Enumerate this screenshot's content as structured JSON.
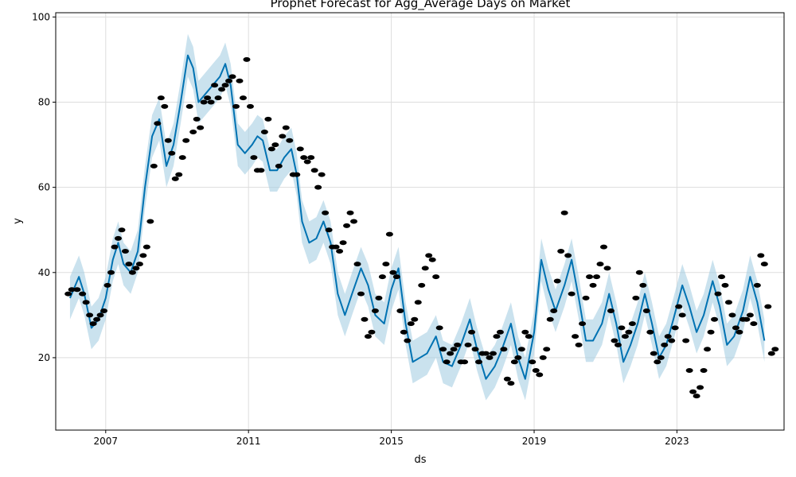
{
  "chart_data": {
    "type": "line",
    "title": "Prophet Forecast for Agg_Average Days on Market",
    "xlabel": "ds",
    "ylabel": "y",
    "xlim": [
      2005.6,
      2026.0
    ],
    "ylim": [
      3,
      101
    ],
    "x_ticks": [
      2007,
      2011,
      2015,
      2019,
      2023
    ],
    "y_ticks": [
      20,
      40,
      60,
      80,
      100
    ],
    "grid": true,
    "colors": {
      "forecast_line": "#0072B2",
      "uncertainty_band": "#a6cee3",
      "observed_points": "#000000",
      "grid": "#dddddd"
    },
    "series": [
      {
        "name": "yhat",
        "points": [
          [
            2006.0,
            34
          ],
          [
            2006.1,
            36
          ],
          [
            2006.25,
            39
          ],
          [
            2006.4,
            35
          ],
          [
            2006.6,
            27
          ],
          [
            2006.8,
            29
          ],
          [
            2007.0,
            34
          ],
          [
            2007.2,
            43
          ],
          [
            2007.35,
            47
          ],
          [
            2007.5,
            42
          ],
          [
            2007.7,
            40
          ],
          [
            2007.9,
            45
          ],
          [
            2008.1,
            60
          ],
          [
            2008.3,
            72
          ],
          [
            2008.5,
            76
          ],
          [
            2008.7,
            65
          ],
          [
            2008.9,
            70
          ],
          [
            2009.1,
            80
          ],
          [
            2009.3,
            91
          ],
          [
            2009.45,
            88
          ],
          [
            2009.6,
            80
          ],
          [
            2009.8,
            82
          ],
          [
            2010.0,
            84
          ],
          [
            2010.2,
            86
          ],
          [
            2010.35,
            89
          ],
          [
            2010.5,
            84
          ],
          [
            2010.7,
            70
          ],
          [
            2010.9,
            68
          ],
          [
            2011.1,
            70
          ],
          [
            2011.25,
            72
          ],
          [
            2011.4,
            71
          ],
          [
            2011.6,
            64
          ],
          [
            2011.8,
            64
          ],
          [
            2012.0,
            67
          ],
          [
            2012.2,
            69
          ],
          [
            2012.35,
            63
          ],
          [
            2012.5,
            52
          ],
          [
            2012.7,
            47
          ],
          [
            2012.9,
            48
          ],
          [
            2013.1,
            52
          ],
          [
            2013.3,
            47
          ],
          [
            2013.5,
            35
          ],
          [
            2013.7,
            30
          ],
          [
            2013.9,
            35
          ],
          [
            2014.15,
            41
          ],
          [
            2014.35,
            37
          ],
          [
            2014.55,
            30
          ],
          [
            2014.8,
            28
          ],
          [
            2015.0,
            36
          ],
          [
            2015.2,
            41
          ],
          [
            2015.4,
            28
          ],
          [
            2015.6,
            19
          ],
          [
            2015.8,
            20
          ],
          [
            2016.0,
            21
          ],
          [
            2016.25,
            25
          ],
          [
            2016.45,
            19
          ],
          [
            2016.7,
            18
          ],
          [
            2016.95,
            23
          ],
          [
            2017.2,
            29
          ],
          [
            2017.4,
            22
          ],
          [
            2017.65,
            15
          ],
          [
            2017.9,
            18
          ],
          [
            2018.1,
            22
          ],
          [
            2018.35,
            28
          ],
          [
            2018.55,
            20
          ],
          [
            2018.75,
            15
          ],
          [
            2019.0,
            26
          ],
          [
            2019.2,
            43
          ],
          [
            2019.4,
            36
          ],
          [
            2019.6,
            31
          ],
          [
            2019.85,
            37
          ],
          [
            2020.05,
            43
          ],
          [
            2020.25,
            34
          ],
          [
            2020.45,
            24
          ],
          [
            2020.65,
            24
          ],
          [
            2020.9,
            28
          ],
          [
            2021.1,
            35
          ],
          [
            2021.3,
            28
          ],
          [
            2021.5,
            19
          ],
          [
            2021.7,
            23
          ],
          [
            2021.9,
            28
          ],
          [
            2022.1,
            35
          ],
          [
            2022.3,
            28
          ],
          [
            2022.5,
            20
          ],
          [
            2022.7,
            23
          ],
          [
            2022.9,
            29
          ],
          [
            2023.15,
            37
          ],
          [
            2023.35,
            32
          ],
          [
            2023.55,
            26
          ],
          [
            2023.75,
            30
          ],
          [
            2024.0,
            38
          ],
          [
            2024.2,
            32
          ],
          [
            2024.4,
            23
          ],
          [
            2024.6,
            25
          ],
          [
            2024.85,
            31
          ],
          [
            2025.05,
            39
          ],
          [
            2025.25,
            33
          ],
          [
            2025.45,
            24
          ]
        ]
      },
      {
        "name": "yhat_band_halfwidth",
        "values": 5
      },
      {
        "name": "y",
        "points": [
          [
            2005.95,
            35
          ],
          [
            2006.05,
            36
          ],
          [
            2006.2,
            36
          ],
          [
            2006.35,
            35
          ],
          [
            2006.45,
            33
          ],
          [
            2006.55,
            30
          ],
          [
            2006.65,
            28
          ],
          [
            2006.75,
            29
          ],
          [
            2006.85,
            30
          ],
          [
            2006.95,
            31
          ],
          [
            2007.05,
            37
          ],
          [
            2007.15,
            40
          ],
          [
            2007.25,
            46
          ],
          [
            2007.35,
            48
          ],
          [
            2007.45,
            50
          ],
          [
            2007.55,
            45
          ],
          [
            2007.65,
            42
          ],
          [
            2007.75,
            40
          ],
          [
            2007.85,
            41
          ],
          [
            2007.95,
            42
          ],
          [
            2008.05,
            44
          ],
          [
            2008.15,
            46
          ],
          [
            2008.25,
            52
          ],
          [
            2008.35,
            65
          ],
          [
            2008.45,
            75
          ],
          [
            2008.55,
            81
          ],
          [
            2008.65,
            79
          ],
          [
            2008.75,
            71
          ],
          [
            2008.85,
            68
          ],
          [
            2008.95,
            62
          ],
          [
            2009.05,
            63
          ],
          [
            2009.15,
            67
          ],
          [
            2009.25,
            71
          ],
          [
            2009.35,
            79
          ],
          [
            2009.45,
            73
          ],
          [
            2009.55,
            76
          ],
          [
            2009.65,
            74
          ],
          [
            2009.75,
            80
          ],
          [
            2009.85,
            81
          ],
          [
            2009.95,
            80
          ],
          [
            2010.05,
            84
          ],
          [
            2010.15,
            81
          ],
          [
            2010.25,
            83
          ],
          [
            2010.35,
            84
          ],
          [
            2010.45,
            85
          ],
          [
            2010.55,
            86
          ],
          [
            2010.65,
            79
          ],
          [
            2010.75,
            85
          ],
          [
            2010.85,
            81
          ],
          [
            2010.95,
            90
          ],
          [
            2011.05,
            79
          ],
          [
            2011.15,
            67
          ],
          [
            2011.25,
            64
          ],
          [
            2011.35,
            64
          ],
          [
            2011.45,
            73
          ],
          [
            2011.55,
            76
          ],
          [
            2011.65,
            69
          ],
          [
            2011.75,
            70
          ],
          [
            2011.85,
            65
          ],
          [
            2011.95,
            72
          ],
          [
            2012.05,
            74
          ],
          [
            2012.15,
            71
          ],
          [
            2012.25,
            63
          ],
          [
            2012.35,
            63
          ],
          [
            2012.45,
            69
          ],
          [
            2012.55,
            67
          ],
          [
            2012.65,
            66
          ],
          [
            2012.75,
            67
          ],
          [
            2012.85,
            64
          ],
          [
            2012.95,
            60
          ],
          [
            2013.05,
            63
          ],
          [
            2013.15,
            54
          ],
          [
            2013.25,
            50
          ],
          [
            2013.35,
            46
          ],
          [
            2013.45,
            46
          ],
          [
            2013.55,
            45
          ],
          [
            2013.65,
            47
          ],
          [
            2013.75,
            51
          ],
          [
            2013.85,
            54
          ],
          [
            2013.95,
            52
          ],
          [
            2014.05,
            42
          ],
          [
            2014.15,
            35
          ],
          [
            2014.25,
            29
          ],
          [
            2014.35,
            25
          ],
          [
            2014.45,
            26
          ],
          [
            2014.55,
            31
          ],
          [
            2014.65,
            34
          ],
          [
            2014.75,
            39
          ],
          [
            2014.85,
            42
          ],
          [
            2014.95,
            49
          ],
          [
            2015.05,
            40
          ],
          [
            2015.15,
            39
          ],
          [
            2015.25,
            31
          ],
          [
            2015.35,
            26
          ],
          [
            2015.45,
            24
          ],
          [
            2015.55,
            28
          ],
          [
            2015.65,
            29
          ],
          [
            2015.75,
            33
          ],
          [
            2015.85,
            37
          ],
          [
            2015.95,
            41
          ],
          [
            2016.05,
            44
          ],
          [
            2016.15,
            43
          ],
          [
            2016.25,
            39
          ],
          [
            2016.35,
            27
          ],
          [
            2016.45,
            22
          ],
          [
            2016.55,
            19
          ],
          [
            2016.65,
            21
          ],
          [
            2016.75,
            22
          ],
          [
            2016.85,
            23
          ],
          [
            2016.95,
            19
          ],
          [
            2017.05,
            19
          ],
          [
            2017.15,
            23
          ],
          [
            2017.25,
            26
          ],
          [
            2017.35,
            22
          ],
          [
            2017.45,
            19
          ],
          [
            2017.55,
            21
          ],
          [
            2017.65,
            21
          ],
          [
            2017.75,
            20
          ],
          [
            2017.85,
            21
          ],
          [
            2017.95,
            25
          ],
          [
            2018.05,
            26
          ],
          [
            2018.15,
            22
          ],
          [
            2018.25,
            15
          ],
          [
            2018.35,
            14
          ],
          [
            2018.45,
            19
          ],
          [
            2018.55,
            20
          ],
          [
            2018.65,
            22
          ],
          [
            2018.75,
            26
          ],
          [
            2018.85,
            25
          ],
          [
            2018.95,
            19
          ],
          [
            2019.05,
            17
          ],
          [
            2019.15,
            16
          ],
          [
            2019.25,
            20
          ],
          [
            2019.35,
            22
          ],
          [
            2019.45,
            29
          ],
          [
            2019.55,
            31
          ],
          [
            2019.65,
            38
          ],
          [
            2019.75,
            45
          ],
          [
            2019.85,
            54
          ],
          [
            2019.95,
            44
          ],
          [
            2020.05,
            35
          ],
          [
            2020.15,
            25
          ],
          [
            2020.25,
            23
          ],
          [
            2020.35,
            28
          ],
          [
            2020.45,
            34
          ],
          [
            2020.55,
            39
          ],
          [
            2020.65,
            37
          ],
          [
            2020.75,
            39
          ],
          [
            2020.85,
            42
          ],
          [
            2020.95,
            46
          ],
          [
            2021.05,
            41
          ],
          [
            2021.15,
            31
          ],
          [
            2021.25,
            24
          ],
          [
            2021.35,
            23
          ],
          [
            2021.45,
            27
          ],
          [
            2021.55,
            25
          ],
          [
            2021.65,
            26
          ],
          [
            2021.75,
            28
          ],
          [
            2021.85,
            34
          ],
          [
            2021.95,
            40
          ],
          [
            2022.05,
            37
          ],
          [
            2022.15,
            31
          ],
          [
            2022.25,
            26
          ],
          [
            2022.35,
            21
          ],
          [
            2022.45,
            19
          ],
          [
            2022.55,
            20
          ],
          [
            2022.65,
            23
          ],
          [
            2022.75,
            25
          ],
          [
            2022.85,
            24
          ],
          [
            2022.95,
            27
          ],
          [
            2023.05,
            32
          ],
          [
            2023.15,
            30
          ],
          [
            2023.25,
            24
          ],
          [
            2023.35,
            17
          ],
          [
            2023.45,
            12
          ],
          [
            2023.55,
            11
          ],
          [
            2023.65,
            13
          ],
          [
            2023.75,
            17
          ],
          [
            2023.85,
            22
          ],
          [
            2023.95,
            26
          ],
          [
            2024.05,
            29
          ],
          [
            2024.15,
            35
          ],
          [
            2024.25,
            39
          ],
          [
            2024.35,
            37
          ],
          [
            2024.45,
            33
          ],
          [
            2024.55,
            30
          ],
          [
            2024.65,
            27
          ],
          [
            2024.75,
            26
          ],
          [
            2024.85,
            29
          ],
          [
            2024.95,
            29
          ],
          [
            2025.05,
            30
          ],
          [
            2025.15,
            28
          ],
          [
            2025.25,
            37
          ],
          [
            2025.35,
            44
          ],
          [
            2025.45,
            42
          ],
          [
            2025.55,
            32
          ],
          [
            2025.65,
            21
          ],
          [
            2025.75,
            22
          ]
        ]
      }
    ]
  }
}
